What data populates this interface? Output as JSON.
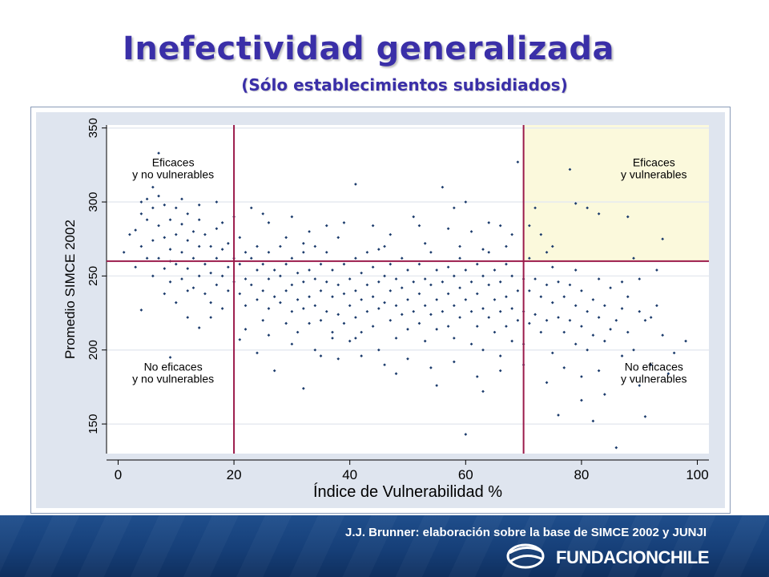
{
  "slide": {
    "title": "Inefectividad generalizada",
    "subtitle": "(Sólo establecimientos subsidiados)",
    "source_note": "J.J. Brunner: elaboración sobre la base de SIMCE 2002 y JUNJI",
    "logo_text": "FUNDACIONCHILE"
  },
  "colors": {
    "title": "#3a2fa8",
    "points": "#1a3a6b",
    "reference_lines": "#9b1b4b",
    "highlight_quadrant": "#fbf9dc",
    "plot_background": "#dfe5ef"
  },
  "chart_data": {
    "type": "scatter",
    "xlabel": "Índice de Vulnerabilidad %",
    "ylabel": "Promedio SIMCE 2002",
    "xlim": [
      -2,
      102
    ],
    "ylim": [
      130,
      352
    ],
    "xticks": [
      0,
      20,
      40,
      60,
      80,
      100
    ],
    "yticks": [
      150,
      200,
      250,
      300,
      350
    ],
    "grid": "horizontal",
    "reference_lines": {
      "x": [
        20,
        70
      ],
      "y": 260
    },
    "highlight_quadrant": {
      "x": [
        70,
        102
      ],
      "y": [
        260,
        352
      ]
    },
    "quadrant_labels": [
      {
        "text": [
          "Eficaces",
          "y no vulnerables"
        ],
        "x": 9.5,
        "y": 324,
        "anchor": "middle"
      },
      {
        "text": [
          "Eficaces",
          "y vulnerables"
        ],
        "x": 92.5,
        "y": 324,
        "anchor": "middle"
      },
      {
        "text": [
          "No eficaces",
          "y no vulnerables"
        ],
        "x": 9.5,
        "y": 186,
        "anchor": "middle"
      },
      {
        "text": [
          "No eficaces",
          "y vulnerables"
        ],
        "x": 92.5,
        "y": 186,
        "anchor": "middle"
      }
    ],
    "points": [
      [
        1,
        266
      ],
      [
        2,
        278
      ],
      [
        3,
        281
      ],
      [
        3,
        256
      ],
      [
        4,
        292
      ],
      [
        4,
        270
      ],
      [
        4,
        227
      ],
      [
        5,
        288
      ],
      [
        5,
        302
      ],
      [
        5,
        262
      ],
      [
        6,
        296
      ],
      [
        6,
        274
      ],
      [
        6,
        250
      ],
      [
        7,
        333
      ],
      [
        7,
        304
      ],
      [
        7,
        284
      ],
      [
        7,
        262
      ],
      [
        8,
        298
      ],
      [
        8,
        276
      ],
      [
        8,
        255
      ],
      [
        8,
        238
      ],
      [
        9,
        288
      ],
      [
        9,
        268
      ],
      [
        9,
        195
      ],
      [
        9,
        246
      ],
      [
        10,
        296
      ],
      [
        10,
        278
      ],
      [
        10,
        258
      ],
      [
        10,
        232
      ],
      [
        11,
        285
      ],
      [
        11,
        266
      ],
      [
        11,
        248
      ],
      [
        12,
        292
      ],
      [
        12,
        274
      ],
      [
        12,
        255
      ],
      [
        12,
        222
      ],
      [
        13,
        280
      ],
      [
        13,
        262
      ],
      [
        13,
        242
      ],
      [
        14,
        288
      ],
      [
        14,
        270
      ],
      [
        14,
        250
      ],
      [
        14,
        215
      ],
      [
        15,
        278
      ],
      [
        15,
        258
      ],
      [
        15,
        238
      ],
      [
        16,
        270
      ],
      [
        16,
        252
      ],
      [
        16,
        232
      ],
      [
        17,
        282
      ],
      [
        17,
        262
      ],
      [
        17,
        244
      ],
      [
        18,
        268
      ],
      [
        18,
        250
      ],
      [
        18,
        228
      ],
      [
        19,
        272
      ],
      [
        19,
        256
      ],
      [
        19,
        240
      ],
      [
        20,
        262
      ],
      [
        20,
        246
      ],
      [
        21,
        276
      ],
      [
        21,
        258
      ],
      [
        21,
        238
      ],
      [
        21,
        207
      ],
      [
        22,
        266
      ],
      [
        22,
        248
      ],
      [
        22,
        230
      ],
      [
        23,
        296
      ],
      [
        23,
        262
      ],
      [
        23,
        244
      ],
      [
        24,
        270
      ],
      [
        24,
        254
      ],
      [
        24,
        234
      ],
      [
        25,
        258
      ],
      [
        25,
        240
      ],
      [
        25,
        220
      ],
      [
        26,
        266
      ],
      [
        26,
        248
      ],
      [
        26,
        228
      ],
      [
        27,
        254
      ],
      [
        27,
        236
      ],
      [
        27,
        186
      ],
      [
        28,
        270
      ],
      [
        28,
        250
      ],
      [
        28,
        232
      ],
      [
        29,
        258
      ],
      [
        29,
        240
      ],
      [
        29,
        218
      ],
      [
        30,
        290
      ],
      [
        30,
        262
      ],
      [
        30,
        244
      ],
      [
        30,
        226
      ],
      [
        31,
        252
      ],
      [
        31,
        234
      ],
      [
        31,
        212
      ],
      [
        32,
        266
      ],
      [
        32,
        246
      ],
      [
        32,
        228
      ],
      [
        32,
        174
      ],
      [
        33,
        254
      ],
      [
        33,
        236
      ],
      [
        33,
        218
      ],
      [
        34,
        270
      ],
      [
        34,
        248
      ],
      [
        34,
        230
      ],
      [
        35,
        258
      ],
      [
        35,
        240
      ],
      [
        35,
        220
      ],
      [
        35,
        196
      ],
      [
        36,
        266
      ],
      [
        36,
        246
      ],
      [
        36,
        226
      ],
      [
        37,
        254
      ],
      [
        37,
        236
      ],
      [
        37,
        212
      ],
      [
        38,
        276
      ],
      [
        38,
        244
      ],
      [
        38,
        224
      ],
      [
        39,
        258
      ],
      [
        39,
        238
      ],
      [
        39,
        218
      ],
      [
        40,
        248
      ],
      [
        40,
        230
      ],
      [
        40,
        206
      ],
      [
        41,
        312
      ],
      [
        41,
        262
      ],
      [
        41,
        240
      ],
      [
        41,
        222
      ],
      [
        42,
        252
      ],
      [
        42,
        234
      ],
      [
        42,
        212
      ],
      [
        43,
        266
      ],
      [
        43,
        244
      ],
      [
        43,
        226
      ],
      [
        44,
        256
      ],
      [
        44,
        236
      ],
      [
        44,
        216
      ],
      [
        45,
        246
      ],
      [
        45,
        228
      ],
      [
        45,
        200
      ],
      [
        46,
        270
      ],
      [
        46,
        250
      ],
      [
        46,
        232
      ],
      [
        47,
        258
      ],
      [
        47,
        240
      ],
      [
        47,
        220
      ],
      [
        48,
        248
      ],
      [
        48,
        230
      ],
      [
        48,
        208
      ],
      [
        49,
        262
      ],
      [
        49,
        242
      ],
      [
        49,
        224
      ],
      [
        50,
        254
      ],
      [
        50,
        234
      ],
      [
        50,
        214
      ],
      [
        51,
        290
      ],
      [
        51,
        246
      ],
      [
        51,
        226
      ],
      [
        52,
        258
      ],
      [
        52,
        238
      ],
      [
        52,
        218
      ],
      [
        53,
        248
      ],
      [
        53,
        230
      ],
      [
        53,
        206
      ],
      [
        54,
        266
      ],
      [
        54,
        244
      ],
      [
        54,
        224
      ],
      [
        55,
        254
      ],
      [
        55,
        234
      ],
      [
        55,
        214
      ],
      [
        56,
        310
      ],
      [
        56,
        246
      ],
      [
        56,
        226
      ],
      [
        57,
        256
      ],
      [
        57,
        238
      ],
      [
        57,
        216
      ],
      [
        58,
        250
      ],
      [
        58,
        230
      ],
      [
        58,
        208
      ],
      [
        59,
        262
      ],
      [
        59,
        242
      ],
      [
        59,
        222
      ],
      [
        60,
        254
      ],
      [
        60,
        234
      ],
      [
        60,
        143
      ],
      [
        61,
        246
      ],
      [
        61,
        226
      ],
      [
        61,
        204
      ],
      [
        62,
        258
      ],
      [
        62,
        238
      ],
      [
        62,
        216
      ],
      [
        63,
        250
      ],
      [
        63,
        228
      ],
      [
        63,
        200
      ],
      [
        64,
        266
      ],
      [
        64,
        244
      ],
      [
        64,
        222
      ],
      [
        65,
        254
      ],
      [
        65,
        234
      ],
      [
        65,
        212
      ],
      [
        66,
        246
      ],
      [
        66,
        226
      ],
      [
        66,
        196
      ],
      [
        67,
        258
      ],
      [
        67,
        236
      ],
      [
        67,
        216
      ],
      [
        68,
        250
      ],
      [
        68,
        228
      ],
      [
        68,
        206
      ],
      [
        69,
        327
      ],
      [
        69,
        240
      ],
      [
        69,
        220
      ],
      [
        70,
        248
      ],
      [
        70,
        226
      ],
      [
        70,
        204
      ],
      [
        71,
        284
      ],
      [
        71,
        240
      ],
      [
        71,
        218
      ],
      [
        72,
        296
      ],
      [
        72,
        248
      ],
      [
        72,
        224
      ],
      [
        73,
        278
      ],
      [
        73,
        236
      ],
      [
        73,
        212
      ],
      [
        74,
        266
      ],
      [
        74,
        244
      ],
      [
        74,
        220
      ],
      [
        75,
        256
      ],
      [
        75,
        232
      ],
      [
        75,
        198
      ],
      [
        76,
        246
      ],
      [
        76,
        222
      ],
      [
        76,
        156
      ],
      [
        77,
        236
      ],
      [
        77,
        212
      ],
      [
        78,
        322
      ],
      [
        78,
        244
      ],
      [
        78,
        220
      ],
      [
        79,
        299
      ],
      [
        79,
        230
      ],
      [
        79,
        204
      ],
      [
        80,
        240
      ],
      [
        80,
        216
      ],
      [
        80,
        166
      ],
      [
        81,
        296
      ],
      [
        81,
        226
      ],
      [
        81,
        200
      ],
      [
        82,
        234
      ],
      [
        82,
        210
      ],
      [
        82,
        152
      ],
      [
        83,
        292
      ],
      [
        83,
        222
      ],
      [
        83,
        186
      ],
      [
        84,
        230
      ],
      [
        84,
        206
      ],
      [
        85,
        242
      ],
      [
        85,
        214
      ],
      [
        86,
        134
      ],
      [
        86,
        220
      ],
      [
        87,
        228
      ],
      [
        87,
        196
      ],
      [
        88,
        290
      ],
      [
        88,
        212
      ],
      [
        89,
        262
      ],
      [
        89,
        200
      ],
      [
        90,
        248
      ],
      [
        90,
        176
      ],
      [
        91,
        155
      ],
      [
        91,
        220
      ],
      [
        92,
        190
      ],
      [
        93,
        254
      ],
      [
        93,
        230
      ],
      [
        94,
        275
      ],
      [
        94,
        210
      ],
      [
        95,
        184
      ],
      [
        96,
        198
      ],
      [
        98,
        206
      ],
      [
        9,
        260
      ],
      [
        12,
        240
      ],
      [
        16,
        222
      ],
      [
        18,
        286
      ],
      [
        24,
        198
      ],
      [
        26,
        286
      ],
      [
        29,
        276
      ],
      [
        33,
        280
      ],
      [
        36,
        284
      ],
      [
        39,
        286
      ],
      [
        44,
        284
      ],
      [
        47,
        278
      ],
      [
        52,
        284
      ],
      [
        57,
        282
      ],
      [
        61,
        280
      ],
      [
        64,
        286
      ],
      [
        66,
        284
      ],
      [
        68,
        278
      ],
      [
        62,
        182
      ],
      [
        58,
        192
      ],
      [
        54,
        188
      ],
      [
        50,
        194
      ],
      [
        46,
        190
      ],
      [
        42,
        196
      ],
      [
        38,
        194
      ],
      [
        34,
        200
      ],
      [
        30,
        204
      ],
      [
        26,
        210
      ],
      [
        22,
        214
      ],
      [
        74,
        178
      ],
      [
        77,
        188
      ],
      [
        80,
        182
      ],
      [
        84,
        170
      ],
      [
        70,
        190
      ],
      [
        66,
        186
      ],
      [
        63,
        172
      ],
      [
        55,
        176
      ],
      [
        48,
        184
      ],
      [
        41,
        208
      ],
      [
        37,
        208
      ],
      [
        45,
        268
      ],
      [
        53,
        272
      ],
      [
        59,
        270
      ],
      [
        67,
        270
      ],
      [
        71,
        262
      ],
      [
        75,
        270
      ],
      [
        79,
        254
      ],
      [
        83,
        248
      ],
      [
        87,
        246
      ],
      [
        11,
        302
      ],
      [
        14,
        298
      ],
      [
        17,
        300
      ],
      [
        6,
        310
      ],
      [
        4,
        300
      ],
      [
        20,
        290
      ],
      [
        25,
        292
      ],
      [
        32,
        272
      ],
      [
        58,
        296
      ],
      [
        60,
        300
      ],
      [
        63,
        268
      ],
      [
        88,
        236
      ],
      [
        90,
        226
      ],
      [
        92,
        222
      ]
    ]
  }
}
